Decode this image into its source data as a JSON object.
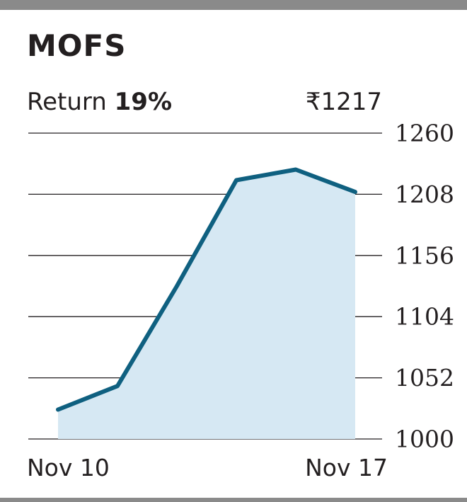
{
  "header": {
    "title": "MOFS",
    "return_label": "Return",
    "return_value": "19%",
    "price": "₹1217"
  },
  "colors": {
    "line": "#0f6080",
    "fill": "#d6e8f3",
    "grid": "#231f20"
  },
  "chart_data": {
    "type": "area",
    "title": "MOFS",
    "xlabel": "",
    "ylabel": "",
    "x_tick_labels": [
      "Nov 10",
      "Nov 17"
    ],
    "y_ticks": [
      "1260",
      "1208",
      "1156",
      "1104",
      "1052",
      "1000"
    ],
    "ylim": [
      1000,
      1260
    ],
    "grid": true,
    "series": [
      {
        "values": [
          1025,
          1045,
          1130,
          1220,
          1229,
          1210
        ]
      }
    ]
  }
}
